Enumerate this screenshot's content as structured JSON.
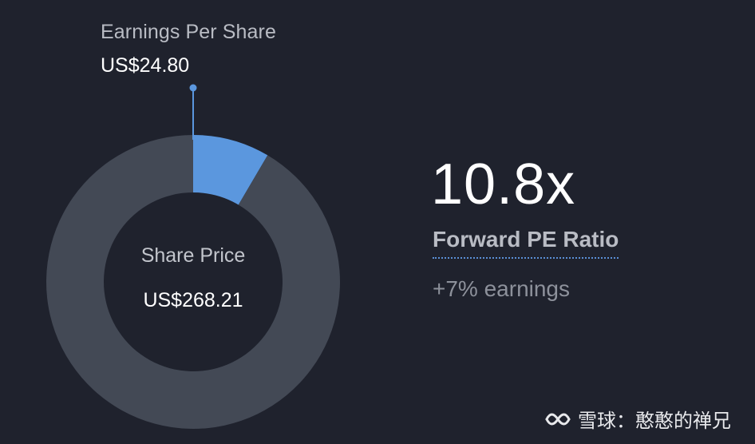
{
  "chart_data": {
    "type": "pie",
    "variant": "donut",
    "slices": [
      {
        "label": "Earnings Per Share",
        "value": 24.8,
        "display": "US$24.80",
        "color": "#5b97de"
      },
      {
        "label": "Share Price",
        "value": 268.21,
        "display": "US$268.21",
        "color": "#434955"
      }
    ],
    "center_label": "Share Price",
    "center_value": "US$268.21"
  },
  "eps": {
    "label": "Earnings Per Share",
    "value": "US$24.80"
  },
  "metric": {
    "value": "10.8x",
    "label": "Forward PE Ratio",
    "subtext": "+7% earnings"
  },
  "watermark": {
    "text": "雪球：憨憨的禅兄",
    "icon": "xueqiu-logo-icon"
  },
  "colors": {
    "background": "#1f222d",
    "eps_slice": "#5b97de",
    "price_slice": "#434955",
    "accent_underline": "#5b8fd6"
  }
}
